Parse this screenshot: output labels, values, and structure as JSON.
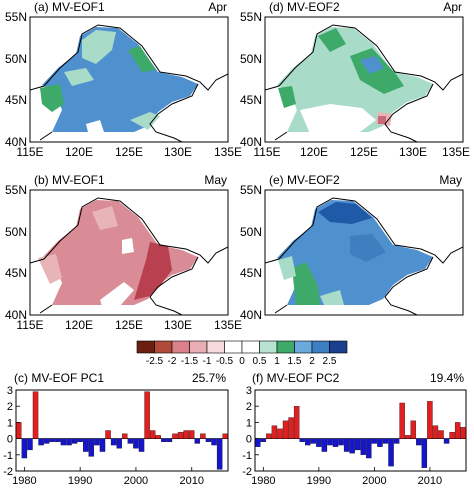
{
  "maps": [
    {
      "id": "a",
      "title": "(a) MV-EOF1",
      "month": "Apr",
      "lat_ticks": [
        "40N",
        "45N",
        "50N",
        "55N"
      ],
      "lon_ticks": [
        "115E",
        "120E",
        "125E",
        "130E",
        "135E"
      ],
      "dominant_fill": "#4f90cf",
      "patches": [
        {
          "color": "#a8dcc8",
          "level": "0.5-1"
        },
        {
          "color": "#3daa6a",
          "level": "1-1.5"
        },
        {
          "color": "#4f90cf",
          "level": "1.5-2"
        },
        {
          "color": "#ffffff",
          "level": "-0.5-0.5"
        }
      ]
    },
    {
      "id": "d",
      "title": "(d) MV-EOF2",
      "month": "Apr",
      "lat_ticks": [
        "40N",
        "45N",
        "50N",
        "55N"
      ],
      "lon_ticks": [
        "115E",
        "120E",
        "125E",
        "130E",
        "135E"
      ],
      "dominant_fill": "#a8dcc8",
      "patches": [
        {
          "color": "#3daa6a",
          "level": "1-1.5"
        },
        {
          "color": "#4f90cf",
          "level": "1.5-2"
        },
        {
          "color": "#ffffff",
          "level": "-0.5-0.5"
        },
        {
          "color": "#e8b4b8",
          "level": "-1--0.5"
        },
        {
          "color": "#c86b78",
          "level": "-1.5--1"
        }
      ]
    },
    {
      "id": "b",
      "title": "(b) MV-EOF1",
      "month": "May",
      "lat_ticks": [
        "40N",
        "45N",
        "50N",
        "55N"
      ],
      "lon_ticks": [
        "115E",
        "120E",
        "125E",
        "130E",
        "135E"
      ],
      "dominant_fill": "#d98c95",
      "patches": [
        {
          "color": "#b8404f",
          "level": "-2--1.5"
        },
        {
          "color": "#e8b4b8",
          "level": "-1--0.5"
        },
        {
          "color": "#ffffff",
          "level": "-0.5-0.5"
        }
      ]
    },
    {
      "id": "e",
      "title": "(e) MV-EOF2",
      "month": "May",
      "lat_ticks": [
        "40N",
        "45N",
        "50N",
        "55N"
      ],
      "lon_ticks": [
        "115E",
        "120E",
        "125E",
        "130E",
        "135E"
      ],
      "dominant_fill": "#4f90cf",
      "patches": [
        {
          "color": "#1f5aa8",
          "level": "2-2.5"
        },
        {
          "color": "#3daa6a",
          "level": "1-1.5"
        },
        {
          "color": "#a8dcc8",
          "level": "0.5-1"
        },
        {
          "color": "#3f7fbf",
          "level": "1.5-2"
        }
      ]
    }
  ],
  "colorbar": {
    "labels": [
      "-2.5",
      "-2",
      "-1.5",
      "-1",
      "-0.5",
      "0",
      "0.5",
      "1",
      "1.5",
      "2",
      "2.5"
    ],
    "colors": [
      "#6b1f10",
      "#b04a3a",
      "#d9808a",
      "#e9aeb4",
      "#f6dadd",
      "#ffffff",
      "#ffffff",
      "#b8e3d3",
      "#3daa6a",
      "#6aa8dd",
      "#3d7fc4",
      "#1a3f8f"
    ]
  },
  "chart_data": [
    {
      "type": "bar",
      "title": "(c) MV-EOF PC1",
      "annotation": "25.7%",
      "x": [
        1979,
        1980,
        1981,
        1982,
        1983,
        1984,
        1985,
        1986,
        1987,
        1988,
        1989,
        1990,
        1991,
        1992,
        1993,
        1994,
        1995,
        1996,
        1997,
        1998,
        1999,
        2000,
        2001,
        2002,
        2003,
        2004,
        2005,
        2006,
        2007,
        2008,
        2009,
        2010,
        2011,
        2012,
        2013,
        2014,
        2015,
        2016
      ],
      "values": [
        1.0,
        -1.2,
        -0.7,
        2.9,
        -0.4,
        -0.3,
        -0.2,
        -0.2,
        -0.4,
        -0.4,
        -0.3,
        -0.2,
        -0.8,
        -1.1,
        -0.4,
        -0.8,
        0.5,
        -0.4,
        -0.6,
        0.3,
        -0.3,
        -0.6,
        -0.8,
        2.9,
        0.5,
        0.2,
        -0.2,
        -0.2,
        0.3,
        0.4,
        0.5,
        0.5,
        -0.3,
        0.3,
        -0.2,
        -0.4,
        -1.9,
        0.3
      ],
      "positive_color": "#e02020",
      "negative_color": "#1515cc",
      "xlim": [
        1978.5,
        2016.5
      ],
      "ylim": [
        -2,
        3
      ],
      "yticks": [
        -2,
        -1,
        0,
        1,
        2,
        3
      ],
      "xticks": [
        1980,
        1990,
        2000,
        2010
      ],
      "grid": false
    },
    {
      "type": "bar",
      "title": "(f) MV-EOF PC2",
      "annotation": "19.4%",
      "x": [
        1979,
        1980,
        1981,
        1982,
        1983,
        1984,
        1985,
        1986,
        1987,
        1988,
        1989,
        1990,
        1991,
        1992,
        1993,
        1994,
        1995,
        1996,
        1997,
        1998,
        1999,
        2000,
        2001,
        2002,
        2003,
        2004,
        2005,
        2006,
        2007,
        2008,
        2009,
        2010,
        2011,
        2012,
        2013,
        2014,
        2015,
        2016
      ],
      "values": [
        -0.5,
        -0.2,
        0.3,
        0.8,
        0.6,
        1.1,
        1.3,
        2.0,
        -0.2,
        -0.4,
        -0.3,
        -0.5,
        -0.8,
        -0.4,
        -0.5,
        -0.4,
        -0.8,
        -0.9,
        -0.7,
        -1.0,
        -1.2,
        -0.3,
        -0.5,
        -0.3,
        -1.7,
        -0.3,
        2.2,
        0.2,
        1.1,
        -0.4,
        -1.8,
        2.3,
        0.8,
        0.5,
        -0.3,
        0.4,
        1.0,
        0.7
      ],
      "positive_color": "#e02020",
      "negative_color": "#1515cc",
      "xlim": [
        1978.5,
        2016.5
      ],
      "ylim": [
        -2,
        3
      ],
      "yticks": [
        -2,
        -1,
        0,
        1,
        2,
        3
      ],
      "xticks": [
        1980,
        1990,
        2000,
        2010
      ],
      "grid": false
    }
  ]
}
